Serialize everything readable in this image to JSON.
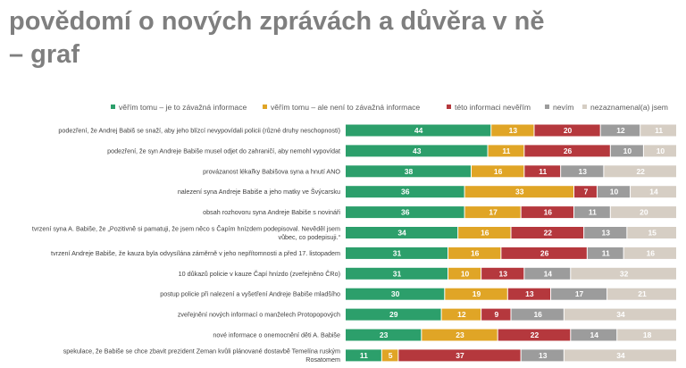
{
  "title_lines": [
    "povědomí o nových zprávách a důvěra v ně",
    "– graf"
  ],
  "chart_data": {
    "type": "bar",
    "orientation": "horizontal",
    "stacked": true,
    "legend_position": "top",
    "series": [
      {
        "name": "věřím tomu – je to závažná informace",
        "color": "#2c9f6b",
        "values": [
          44,
          43,
          38,
          36,
          36,
          34,
          31,
          31,
          30,
          29,
          23,
          11
        ]
      },
      {
        "name": "věřím tomu – ale není to závažná informace",
        "color": "#e0a526",
        "values": [
          13,
          11,
          16,
          33,
          17,
          16,
          16,
          10,
          19,
          12,
          23,
          5
        ]
      },
      {
        "name": "této informaci nevěřím",
        "color": "#b5383d",
        "values": [
          20,
          26,
          11,
          7,
          16,
          22,
          26,
          13,
          13,
          9,
          22,
          37
        ]
      },
      {
        "name": "nevím",
        "color": "#9c9c9c",
        "values": [
          12,
          10,
          13,
          10,
          11,
          13,
          11,
          14,
          17,
          16,
          14,
          13
        ]
      },
      {
        "name": "nezaznamenal(a) jsem",
        "color": "#d6cec4",
        "values": [
          11,
          10,
          22,
          14,
          20,
          15,
          16,
          32,
          21,
          34,
          18,
          34
        ]
      }
    ],
    "categories": [
      [
        "podezření, že Andrej Babiš se snaží, aby jeho blízcí nevypovídali policii (různé druhy neschopnosti)"
      ],
      [
        "podezření, že syn Andreje Babiše musel odjet do zahraničí, aby nemohl vypovídat"
      ],
      [
        "provázanost lékařky Babišova syna a hnutí ANO"
      ],
      [
        "nalezení syna Andreje Babiše a jeho matky ve Švýcarsku"
      ],
      [
        "obsah rozhovoru syna Andreje Babiše s novináři"
      ],
      [
        "tvrzení syna A. Babiše, že „Pozitivně si pamatuji, že jsem něco s Čapím hnízdem podepisoval. Nevěděl jsem",
        "vůbec, co podepisuji.“"
      ],
      [
        "tvrzení Andreje Babiše, že kauza byla odvysílána záměrně v jeho nepřítomnosti a před 17. listopadem"
      ],
      [
        "10 důkazů policie v kauze Čapí hnízdo (zveřejněno ČRo)"
      ],
      [
        "postup policie při nalezení a vyšetření Andreje Babiše mladšího"
      ],
      [
        "zveřejnění nových informací o manželech Protopopových"
      ],
      [
        "nové informace o onemocnění děti A. Babiše"
      ],
      [
        "spekulace, že Babiše se chce zbavit prezident Zeman kvůli plánované dostavbě Temelína ruským",
        "Rosatomem"
      ]
    ],
    "xlim": [
      0,
      100
    ],
    "data_labels": true
  }
}
